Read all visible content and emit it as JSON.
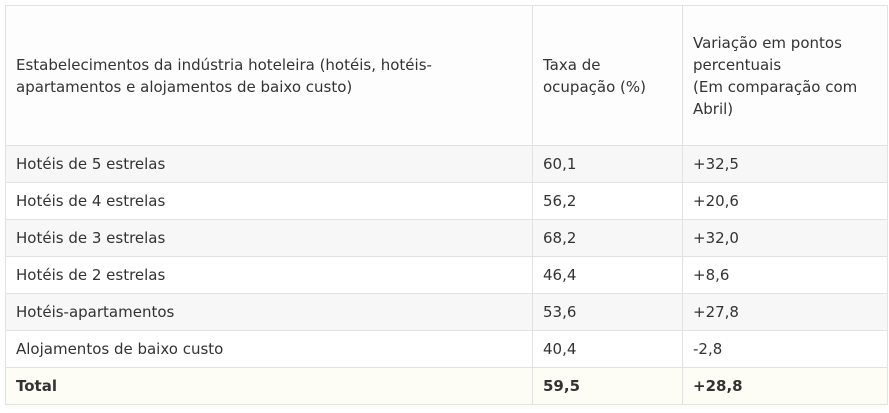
{
  "table": {
    "headers": {
      "col1": "Estabelecimentos da indústria hoteleira (hotéis, hotéis-apartamentos e alojamentos de baixo custo)",
      "col2": "Taxa de ocupação (%)",
      "col3_line1": "Variação em pontos percentuais",
      "col3_line2": "(Em comparação com Abril)"
    },
    "rows": [
      {
        "name": "Hotéis de 5 estrelas",
        "rate": "60,1",
        "change": "+32,5"
      },
      {
        "name": "Hotéis de 4 estrelas",
        "rate": "56,2",
        "change": "+20,6"
      },
      {
        "name": "Hotéis de 3 estrelas",
        "rate": "68,2",
        "change": "+32,0"
      },
      {
        "name": "Hotéis de 2 estrelas",
        "rate": "46,4",
        "change": "+8,6"
      },
      {
        "name": "Hotéis-apartamentos",
        "rate": "53,6",
        "change": "+27,8"
      },
      {
        "name": "Alojamentos de baixo custo",
        "rate": "40,4",
        "change": "-2,8"
      }
    ],
    "total": {
      "name": "Total",
      "rate": "59,5",
      "change": "+28,8"
    }
  }
}
